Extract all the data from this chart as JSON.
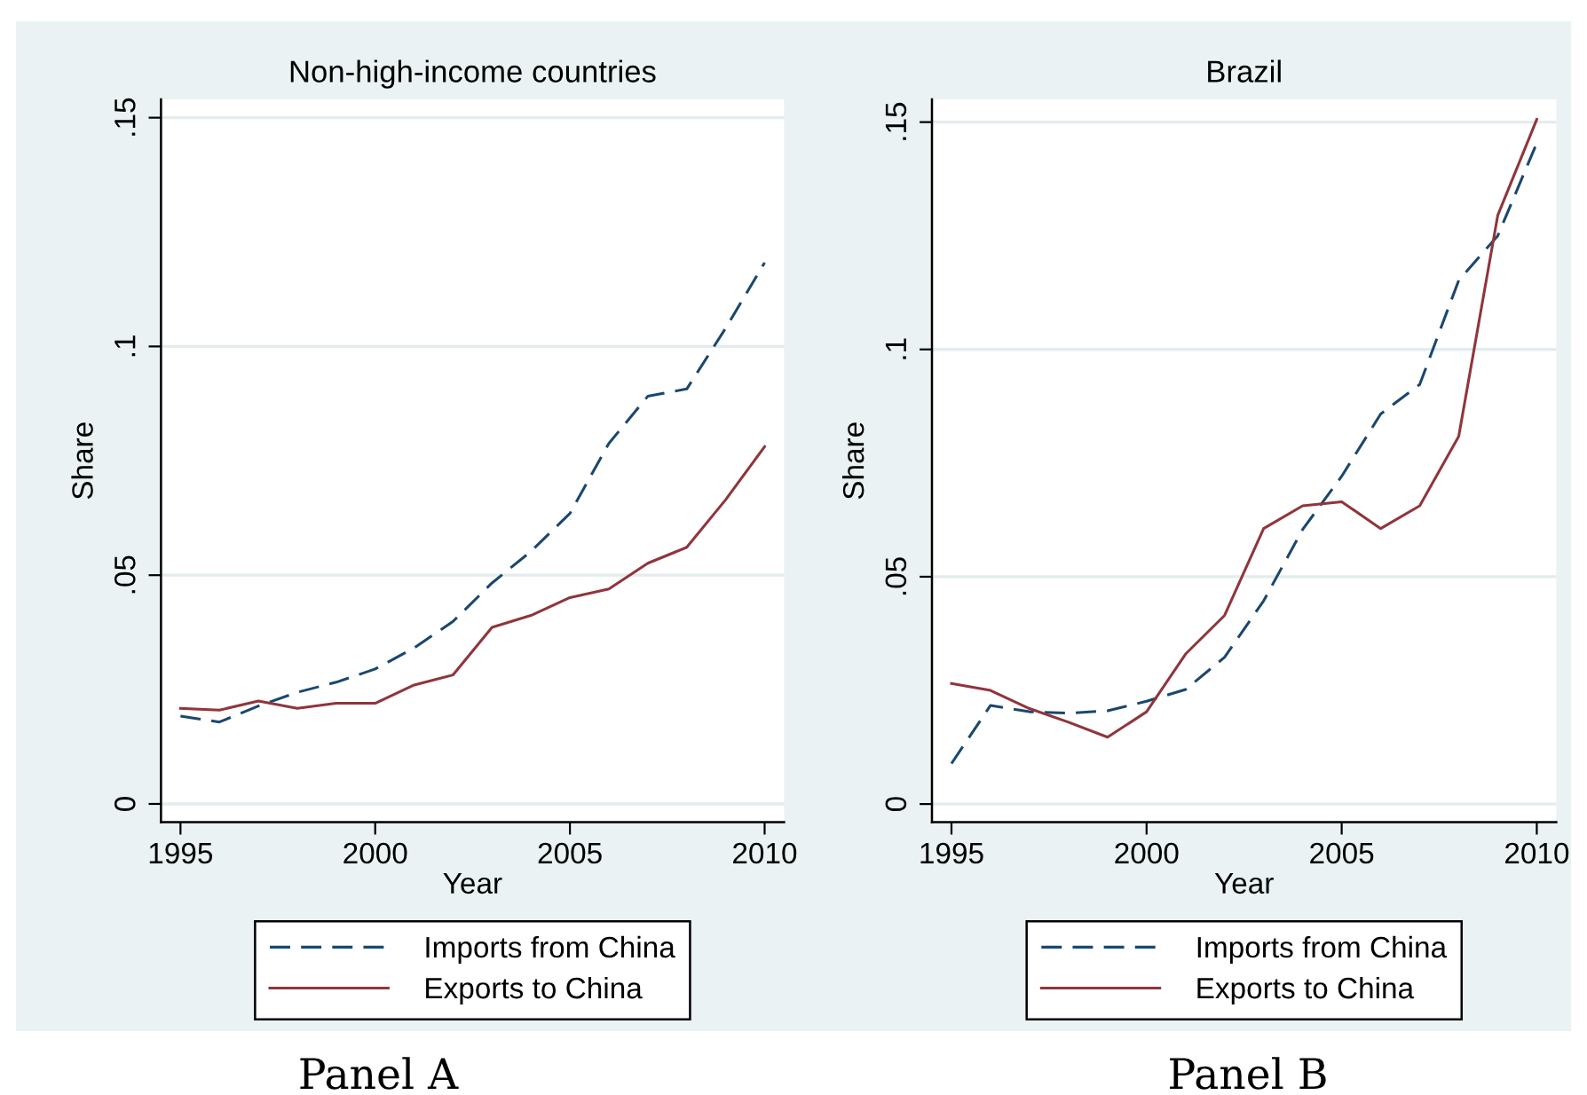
{
  "chart_data": [
    {
      "type": "line",
      "title": "Non-high-income countries",
      "xlabel": "Year",
      "ylabel": "Share",
      "x": [
        1995,
        1996,
        1997,
        1998,
        1999,
        2000,
        2001,
        2002,
        2003,
        2004,
        2005,
        2006,
        2007,
        2008,
        2009,
        2010
      ],
      "series": [
        {
          "name": "Imports from China",
          "color": "#1a476f",
          "line_style": "dashed",
          "values": [
            0.0192,
            0.0179,
            0.0214,
            0.0244,
            0.0266,
            0.0295,
            0.0341,
            0.0399,
            0.0483,
            0.0552,
            0.0635,
            0.0788,
            0.0891,
            0.0907,
            0.104,
            0.1183
          ]
        },
        {
          "name": "Exports to China",
          "color": "#90353b",
          "line_style": "solid",
          "values": [
            0.0209,
            0.0205,
            0.0225,
            0.0209,
            0.022,
            0.022,
            0.026,
            0.0282,
            0.0386,
            0.0412,
            0.0451,
            0.047,
            0.0526,
            0.0561,
            0.0665,
            0.0781
          ]
        }
      ],
      "xlim": [
        1994.5,
        2010.5
      ],
      "xticks": [
        1995,
        2000,
        2005,
        2010
      ],
      "ylim": [
        -0.004,
        0.154
      ],
      "yticks": [
        0,
        {
          "value": 0.05,
          "label": ".05"
        },
        {
          "value": 0.1,
          "label": ".1"
        },
        {
          "value": 0.15,
          "label": ".15"
        }
      ],
      "grid": "y",
      "legend": "bottom",
      "annotations": [
        "Panel A"
      ]
    },
    {
      "type": "line",
      "title": "Brazil",
      "xlabel": "Year",
      "ylabel": "Share",
      "x": [
        1995,
        1996,
        1997,
        1998,
        1999,
        2000,
        2001,
        2002,
        2003,
        2004,
        2005,
        2006,
        2007,
        2008,
        2009,
        2010
      ],
      "series": [
        {
          "name": "Imports from China",
          "color": "#1a476f",
          "line_style": "dashed",
          "values": [
            0.0089,
            0.0217,
            0.0203,
            0.02,
            0.0205,
            0.0226,
            0.0252,
            0.0323,
            0.0447,
            0.0604,
            0.0721,
            0.0858,
            0.0923,
            0.1152,
            0.125,
            0.1454
          ]
        },
        {
          "name": "Exports to China",
          "color": "#90353b",
          "line_style": "solid",
          "values": [
            0.0265,
            0.025,
            0.021,
            0.018,
            0.0147,
            0.0203,
            0.033,
            0.0415,
            0.0606,
            0.0656,
            0.0665,
            0.0606,
            0.0656,
            0.0809,
            0.1295,
            0.1506
          ]
        }
      ],
      "xlim": [
        1994.5,
        2010.5
      ],
      "xticks": [
        1995,
        2000,
        2005,
        2010
      ],
      "ylim": [
        -0.004,
        0.155
      ],
      "yticks": [
        0,
        {
          "value": 0.05,
          "label": ".05"
        },
        {
          "value": 0.1,
          "label": ".1"
        },
        {
          "value": 0.15,
          "label": ".15"
        }
      ],
      "grid": "y",
      "legend": "bottom",
      "annotations": [
        "Panel B"
      ]
    }
  ]
}
